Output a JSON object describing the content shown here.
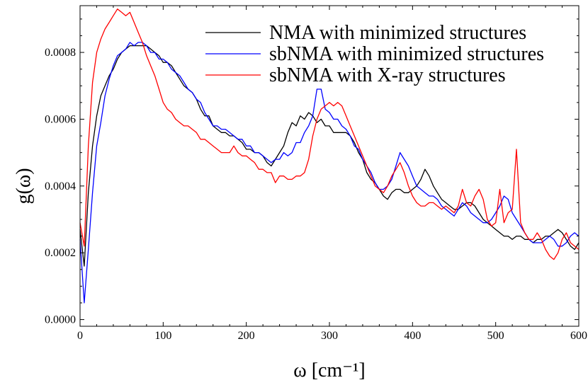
{
  "chart_data": {
    "type": "line",
    "title": "",
    "xlabel": "ω [cm⁻¹]",
    "ylabel": "g(ω)",
    "xlim": [
      0,
      600
    ],
    "ylim": [
      -2e-05,
      0.00094
    ],
    "xticks": [
      0,
      100,
      200,
      300,
      400,
      500,
      600
    ],
    "xtick_labels": [
      "0",
      "100",
      "200",
      "300",
      "400",
      "500",
      "600"
    ],
    "yticks": [
      0.0,
      0.0002,
      0.0004,
      0.0006,
      0.0008
    ],
    "ytick_labels": [
      "0.0000",
      "0.0002",
      "0.0004",
      "0.0006",
      "0.0008"
    ],
    "grid": false,
    "legend_position": "top-right",
    "series": [
      {
        "name": "NMA with minimized structures",
        "color": "#000000",
        "x": [
          0,
          5,
          10,
          15,
          20,
          25,
          30,
          35,
          40,
          45,
          50,
          55,
          60,
          65,
          70,
          75,
          80,
          85,
          90,
          95,
          100,
          105,
          110,
          115,
          120,
          125,
          130,
          135,
          140,
          145,
          150,
          155,
          160,
          165,
          170,
          175,
          180,
          185,
          190,
          195,
          200,
          205,
          210,
          215,
          220,
          225,
          230,
          235,
          240,
          245,
          250,
          255,
          260,
          265,
          270,
          275,
          280,
          285,
          290,
          295,
          300,
          305,
          310,
          315,
          320,
          325,
          330,
          335,
          340,
          345,
          350,
          355,
          360,
          365,
          370,
          375,
          380,
          385,
          390,
          395,
          400,
          405,
          410,
          415,
          420,
          425,
          430,
          435,
          440,
          445,
          450,
          455,
          460,
          465,
          470,
          475,
          480,
          485,
          490,
          495,
          500,
          505,
          510,
          515,
          520,
          525,
          530,
          535,
          540,
          545,
          550,
          555,
          560,
          565,
          570,
          575,
          580,
          585,
          590,
          595,
          600
        ],
        "values": [
          0.00027,
          0.00016,
          0.00038,
          0.00052,
          0.00061,
          0.00067,
          0.0007,
          0.00073,
          0.00075,
          0.00078,
          0.0008,
          0.00081,
          0.00082,
          0.00082,
          0.00082,
          0.00082,
          0.00082,
          0.00081,
          0.0008,
          0.00079,
          0.00077,
          0.00077,
          0.00076,
          0.00074,
          0.00072,
          0.0007,
          0.00069,
          0.00068,
          0.00066,
          0.00063,
          0.00061,
          0.00061,
          0.00058,
          0.00057,
          0.00056,
          0.00056,
          0.00055,
          0.00055,
          0.00054,
          0.00053,
          0.00051,
          0.00051,
          0.0005,
          0.0005,
          0.00049,
          0.00047,
          0.00046,
          0.00048,
          0.0005,
          0.00052,
          0.00056,
          0.00059,
          0.00058,
          0.00061,
          0.0006,
          0.00062,
          0.00061,
          0.00059,
          0.0006,
          0.00058,
          0.00058,
          0.00056,
          0.00056,
          0.00056,
          0.00056,
          0.00055,
          0.00053,
          0.0005,
          0.00048,
          0.00044,
          0.00042,
          0.00041,
          0.00039,
          0.00037,
          0.00036,
          0.00038,
          0.00039,
          0.00039,
          0.00038,
          0.00038,
          0.00039,
          0.0004,
          0.00042,
          0.00045,
          0.00043,
          0.0004,
          0.00038,
          0.00036,
          0.00035,
          0.00034,
          0.00033,
          0.00033,
          0.00034,
          0.00035,
          0.00035,
          0.00034,
          0.00032,
          0.0003,
          0.00029,
          0.00028,
          0.00027,
          0.00026,
          0.00025,
          0.00025,
          0.00024,
          0.00025,
          0.00025,
          0.00024,
          0.00024,
          0.00023,
          0.00024,
          0.00024,
          0.00025,
          0.00025,
          0.00026,
          0.00027,
          0.00026,
          0.00024,
          0.00022,
          0.00021,
          0.00023
        ]
      },
      {
        "name": "sbNMA with minimized structures",
        "color": "#0000ff",
        "x": [
          0,
          5,
          10,
          15,
          20,
          25,
          30,
          35,
          40,
          45,
          50,
          55,
          60,
          65,
          70,
          75,
          80,
          85,
          90,
          95,
          100,
          105,
          110,
          115,
          120,
          125,
          130,
          135,
          140,
          145,
          150,
          155,
          160,
          165,
          170,
          175,
          180,
          185,
          190,
          195,
          200,
          205,
          210,
          215,
          220,
          225,
          230,
          235,
          240,
          245,
          250,
          255,
          260,
          265,
          270,
          275,
          280,
          285,
          290,
          295,
          300,
          305,
          310,
          315,
          320,
          325,
          330,
          335,
          340,
          345,
          350,
          355,
          360,
          365,
          370,
          375,
          380,
          385,
          390,
          395,
          400,
          405,
          410,
          415,
          420,
          425,
          430,
          435,
          440,
          445,
          450,
          455,
          460,
          465,
          470,
          475,
          480,
          485,
          490,
          495,
          500,
          505,
          510,
          515,
          520,
          525,
          530,
          535,
          540,
          545,
          550,
          555,
          560,
          565,
          570,
          575,
          580,
          585,
          590,
          595,
          600
        ],
        "values": [
          0.00024,
          5e-05,
          0.00021,
          0.00038,
          0.00052,
          0.00059,
          0.00067,
          0.00072,
          0.00076,
          0.00079,
          0.0008,
          0.00081,
          0.00083,
          0.00082,
          0.00083,
          0.00083,
          0.00082,
          0.0008,
          0.0008,
          0.00078,
          0.00078,
          0.00077,
          0.00075,
          0.00074,
          0.00073,
          0.00071,
          0.00069,
          0.00068,
          0.00066,
          0.00065,
          0.00062,
          0.0006,
          0.00058,
          0.00058,
          0.00057,
          0.00057,
          0.00056,
          0.00055,
          0.00054,
          0.00054,
          0.00052,
          0.00052,
          0.0005,
          0.0005,
          0.00049,
          0.00048,
          0.00047,
          0.00048,
          0.00048,
          0.0005,
          0.00049,
          0.0005,
          0.00053,
          0.00053,
          0.00056,
          0.00058,
          0.00061,
          0.00069,
          0.00069,
          0.00063,
          0.00062,
          0.0006,
          0.0006,
          0.00058,
          0.00057,
          0.00055,
          0.00052,
          0.00051,
          0.00048,
          0.00046,
          0.00044,
          0.00041,
          0.00039,
          0.00039,
          0.0004,
          0.00042,
          0.00046,
          0.0005,
          0.00048,
          0.00046,
          0.00043,
          0.0004,
          0.00039,
          0.00038,
          0.00037,
          0.00037,
          0.00036,
          0.00034,
          0.00033,
          0.00032,
          0.00031,
          0.00033,
          0.00035,
          0.00034,
          0.00032,
          0.00031,
          0.0003,
          0.00029,
          0.00029,
          0.0003,
          0.00032,
          0.00034,
          0.00037,
          0.00036,
          0.00032,
          0.0003,
          0.00028,
          0.00026,
          0.00024,
          0.00023,
          0.00023,
          0.00023,
          0.00024,
          0.00025,
          0.00024,
          0.00022,
          0.00022,
          0.00023,
          0.00025,
          0.00026,
          0.00025
        ]
      },
      {
        "name": "sbNMA with X-ray structures",
        "color": "#ff0000",
        "x": [
          0,
          5,
          10,
          15,
          20,
          25,
          30,
          35,
          40,
          45,
          50,
          55,
          60,
          65,
          70,
          75,
          80,
          85,
          90,
          95,
          100,
          105,
          110,
          115,
          120,
          125,
          130,
          135,
          140,
          145,
          150,
          155,
          160,
          165,
          170,
          175,
          180,
          185,
          190,
          195,
          200,
          205,
          210,
          215,
          220,
          225,
          230,
          235,
          240,
          245,
          250,
          255,
          260,
          265,
          270,
          275,
          280,
          285,
          290,
          295,
          300,
          305,
          310,
          315,
          320,
          325,
          330,
          335,
          340,
          345,
          350,
          355,
          360,
          365,
          370,
          375,
          380,
          385,
          390,
          395,
          400,
          405,
          410,
          415,
          420,
          425,
          430,
          435,
          440,
          445,
          450,
          455,
          460,
          465,
          470,
          475,
          480,
          485,
          490,
          495,
          500,
          505,
          510,
          515,
          520,
          525,
          530,
          535,
          540,
          545,
          550,
          555,
          560,
          565,
          570,
          575,
          580,
          585,
          590,
          595,
          600
        ],
        "values": [
          0.00029,
          0.00022,
          0.00052,
          0.00071,
          0.0008,
          0.00084,
          0.00087,
          0.00089,
          0.00091,
          0.00093,
          0.00092,
          0.00091,
          0.00092,
          0.00089,
          0.00086,
          0.00083,
          0.00079,
          0.00076,
          0.00073,
          0.00069,
          0.00065,
          0.00063,
          0.00062,
          0.0006,
          0.00059,
          0.00058,
          0.00058,
          0.00057,
          0.00056,
          0.00054,
          0.00054,
          0.00053,
          0.00052,
          0.00051,
          0.0005,
          0.0005,
          0.0005,
          0.00052,
          0.0005,
          0.00049,
          0.00049,
          0.00048,
          0.00047,
          0.00045,
          0.00045,
          0.00044,
          0.00044,
          0.00041,
          0.00043,
          0.00043,
          0.00042,
          0.00042,
          0.00043,
          0.00043,
          0.00044,
          0.00048,
          0.00055,
          0.0006,
          0.00063,
          0.00064,
          0.00065,
          0.00064,
          0.00065,
          0.00064,
          0.00061,
          0.00058,
          0.00055,
          0.00052,
          0.00049,
          0.00046,
          0.00043,
          0.0004,
          0.00039,
          0.00038,
          0.0004,
          0.00043,
          0.00045,
          0.00047,
          0.00044,
          0.0004,
          0.00037,
          0.00035,
          0.00034,
          0.00034,
          0.00035,
          0.00035,
          0.00034,
          0.00033,
          0.00034,
          0.00033,
          0.00032,
          0.00034,
          0.00039,
          0.00035,
          0.00034,
          0.00037,
          0.00039,
          0.00036,
          0.0003,
          0.00028,
          0.00029,
          0.00039,
          0.00029,
          0.00032,
          0.00033,
          0.00051,
          0.00029,
          0.00026,
          0.00024,
          0.00024,
          0.00026,
          0.00024,
          0.00021,
          0.00019,
          0.00018,
          0.0002,
          0.00024,
          0.00026,
          0.00023,
          0.00022,
          0.00021
        ]
      }
    ]
  }
}
